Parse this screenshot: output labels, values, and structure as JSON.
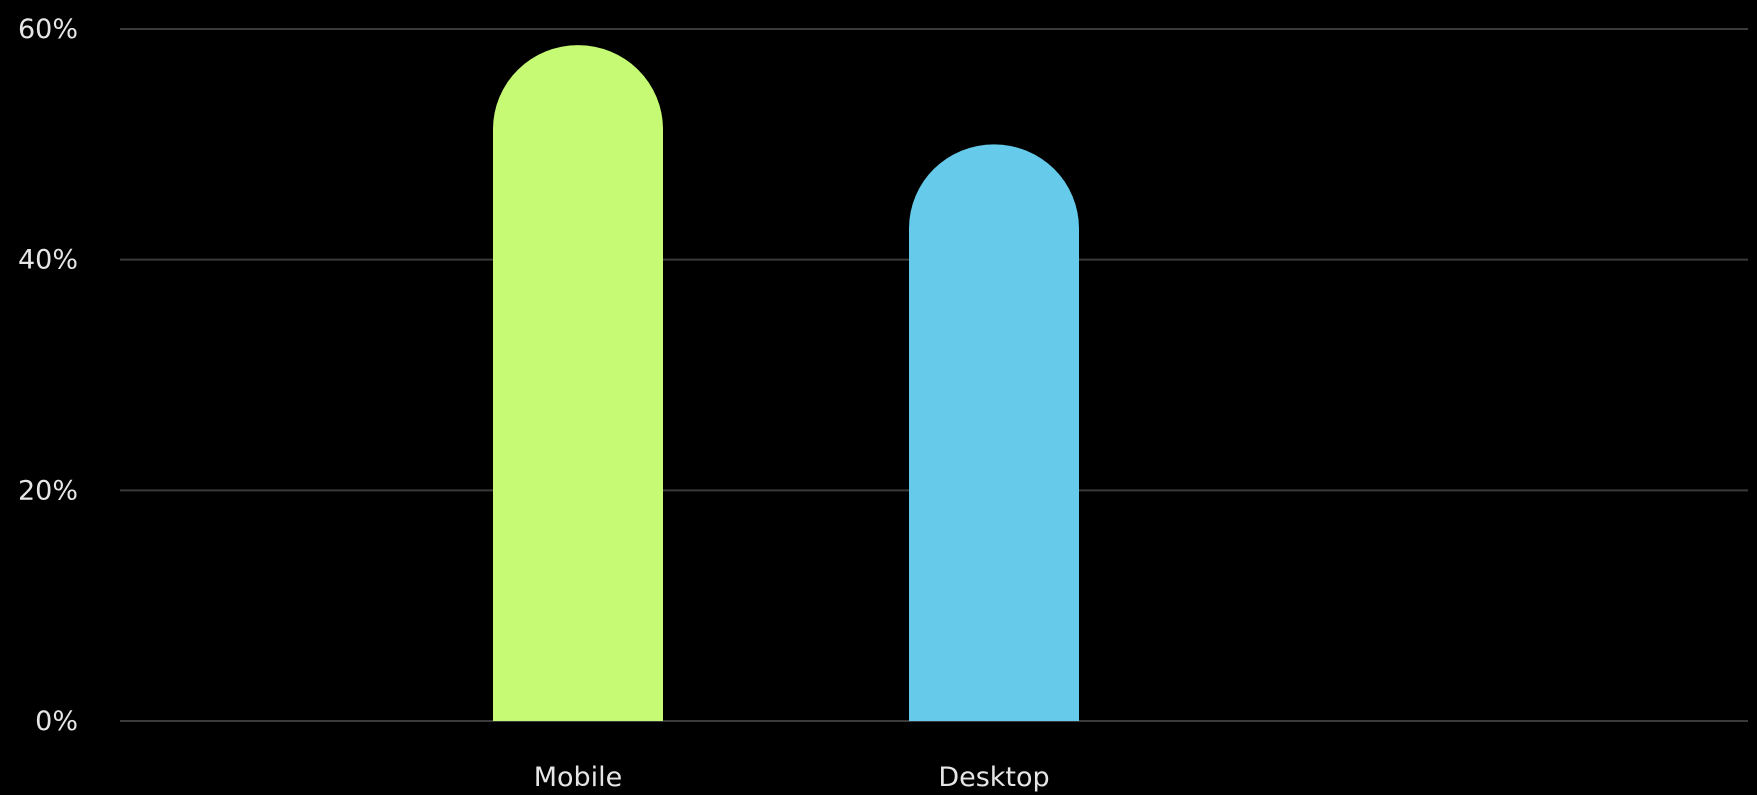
{
  "chart_data": {
    "type": "bar",
    "categories": [
      "Mobile",
      "Desktop"
    ],
    "values": [
      58.6,
      50.0
    ],
    "colors": [
      "#c6f974",
      "#66cbeb"
    ],
    "ylim": [
      0,
      60
    ],
    "yticks": [
      0,
      20,
      40,
      60
    ],
    "ytick_labels": [
      "0%",
      "20%",
      "40%",
      "60%"
    ],
    "grid": true,
    "background": "#000000"
  }
}
